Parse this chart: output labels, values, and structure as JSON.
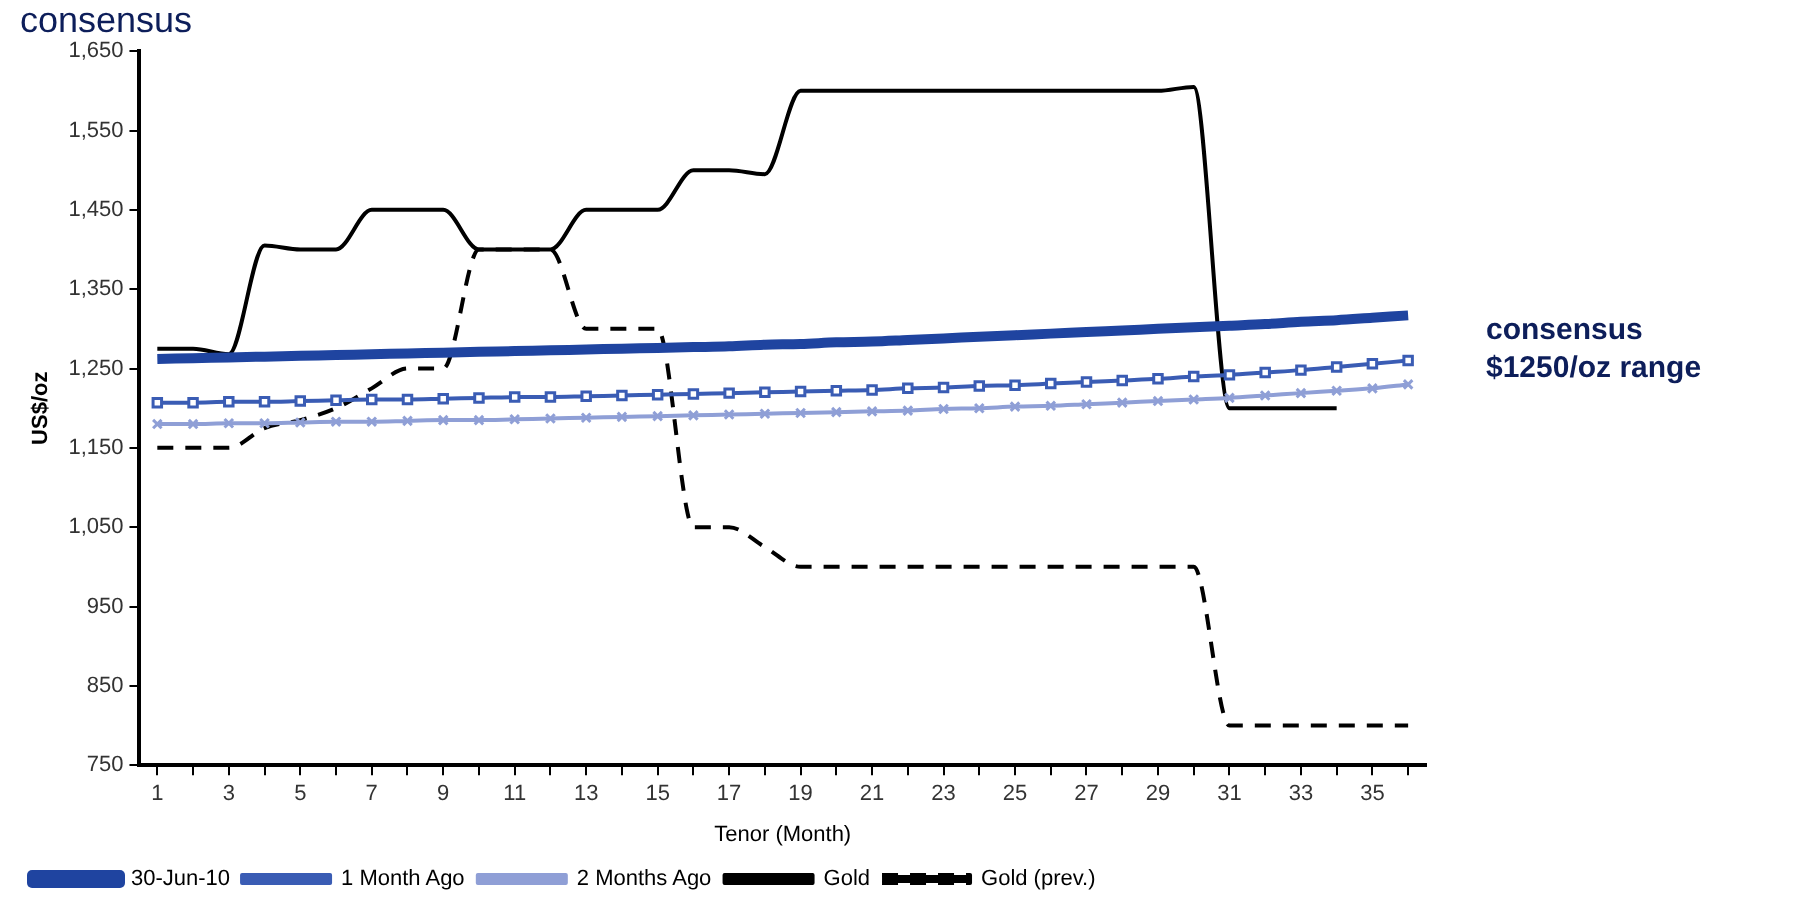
{
  "chart_data": {
    "type": "line",
    "title": "consensus",
    "xlabel": "Tenor (Month)",
    "ylabel": "US$/oz",
    "x": [
      1,
      2,
      3,
      4,
      5,
      6,
      7,
      8,
      9,
      10,
      11,
      12,
      13,
      14,
      15,
      16,
      17,
      18,
      19,
      20,
      21,
      22,
      23,
      24,
      25,
      26,
      27,
      28,
      29,
      30,
      31,
      32,
      33,
      34,
      35,
      36
    ],
    "xlim": [
      0.5,
      36.5
    ],
    "xticks": [
      1,
      {
        "value": 2,
        "label": null
      },
      3,
      {
        "value": 4,
        "label": null
      },
      5,
      {
        "value": 6,
        "label": null
      },
      7,
      {
        "value": 8,
        "label": null
      },
      9,
      {
        "value": 10,
        "label": null
      },
      11,
      {
        "value": 12,
        "label": null
      },
      13,
      {
        "value": 14,
        "label": null
      },
      15,
      {
        "value": 16,
        "label": null
      },
      17,
      {
        "value": 18,
        "label": null
      },
      19,
      {
        "value": 20,
        "label": null
      },
      21,
      {
        "value": 22,
        "label": null
      },
      23,
      {
        "value": 24,
        "label": null
      },
      25,
      {
        "value": 26,
        "label": null
      },
      27,
      {
        "value": 28,
        "label": null
      },
      29,
      {
        "value": 30,
        "label": null
      },
      31,
      {
        "value": 32,
        "label": null
      },
      33,
      {
        "value": 34,
        "label": null
      },
      35,
      {
        "value": 36,
        "label": null
      }
    ],
    "ylim": [
      750,
      1650
    ],
    "yticks": [
      {
        "value": 750,
        "label": "750"
      },
      {
        "value": 850,
        "label": "850"
      },
      {
        "value": 950,
        "label": "950"
      },
      {
        "value": 1050,
        "label": "1,050"
      },
      {
        "value": 1150,
        "label": "1,150"
      },
      {
        "value": 1250,
        "label": "1,250"
      },
      {
        "value": 1350,
        "label": "1,350"
      },
      {
        "value": 1450,
        "label": "1,450"
      },
      {
        "value": 1550,
        "label": "1,550"
      },
      {
        "value": 1650,
        "label": "1,650"
      }
    ],
    "grid": false,
    "legend": "bottom",
    "annotations": [
      "consensus $1250/oz range"
    ],
    "series": [
      {
        "name": "30-Jun-10",
        "color": "#1f44a0",
        "marker": "none",
        "line_style": "solid",
        "values": [
          1262,
          1263,
          1264,
          1265,
          1266,
          1267,
          1268,
          1269,
          1270,
          1271,
          1272,
          1273,
          1274,
          1275,
          1276,
          1277,
          1278,
          1280,
          1281,
          1283,
          1284,
          1286,
          1288,
          1290,
          1292,
          1294,
          1296,
          1298,
          1300,
          1302,
          1304,
          1306,
          1309,
          1311,
          1314,
          1317
        ]
      },
      {
        "name": "1 Month Ago",
        "color": "#3a5cb4",
        "marker": "square",
        "line_style": "solid",
        "values": [
          1207,
          1207,
          1208,
          1208,
          1209,
          1210,
          1211,
          1211,
          1212,
          1213,
          1214,
          1214,
          1215,
          1216,
          1217,
          1218,
          1219,
          1220,
          1221,
          1222,
          1223,
          1225,
          1226,
          1228,
          1229,
          1231,
          1233,
          1235,
          1237,
          1240,
          1242,
          1245,
          1248,
          1252,
          1256,
          1260
        ]
      },
      {
        "name": "2 Months Ago",
        "color": "#8f9fd6",
        "marker": "cross",
        "line_style": "solid",
        "values": [
          1180,
          1180,
          1181,
          1181,
          1182,
          1183,
          1183,
          1184,
          1185,
          1185,
          1186,
          1187,
          1188,
          1189,
          1190,
          1191,
          1192,
          1193,
          1194,
          1195,
          1196,
          1197,
          1199,
          1200,
          1202,
          1203,
          1205,
          1207,
          1209,
          1211,
          1213,
          1216,
          1219,
          1222,
          1225,
          1230
        ]
      },
      {
        "name": "Gold",
        "color": "#000000",
        "marker": "none",
        "line_style": "solid",
        "values": [
          1275,
          1275,
          1268,
          1405,
          1400,
          1400,
          1450,
          1450,
          1450,
          1400,
          1400,
          1400,
          1450,
          1450,
          1450,
          1500,
          1500,
          1495,
          1600,
          1600,
          1600,
          1600,
          1600,
          1600,
          1600,
          1600,
          1600,
          1600,
          1600,
          1605,
          1200,
          1200,
          1200,
          1200,
          null,
          null
        ]
      },
      {
        "name": "Gold (prev.)",
        "color": "#000000",
        "marker": "none",
        "line_style": "dashed",
        "values": [
          1150,
          1150,
          1150,
          1175,
          1185,
          1200,
          1225,
          1250,
          1250,
          1400,
          1400,
          1400,
          1300,
          1300,
          1300,
          1050,
          1050,
          1025,
          1000,
          1000,
          1000,
          1000,
          1000,
          1000,
          1000,
          1000,
          1000,
          1000,
          1000,
          1000,
          800,
          800,
          800,
          800,
          800,
          800
        ]
      }
    ]
  }
}
